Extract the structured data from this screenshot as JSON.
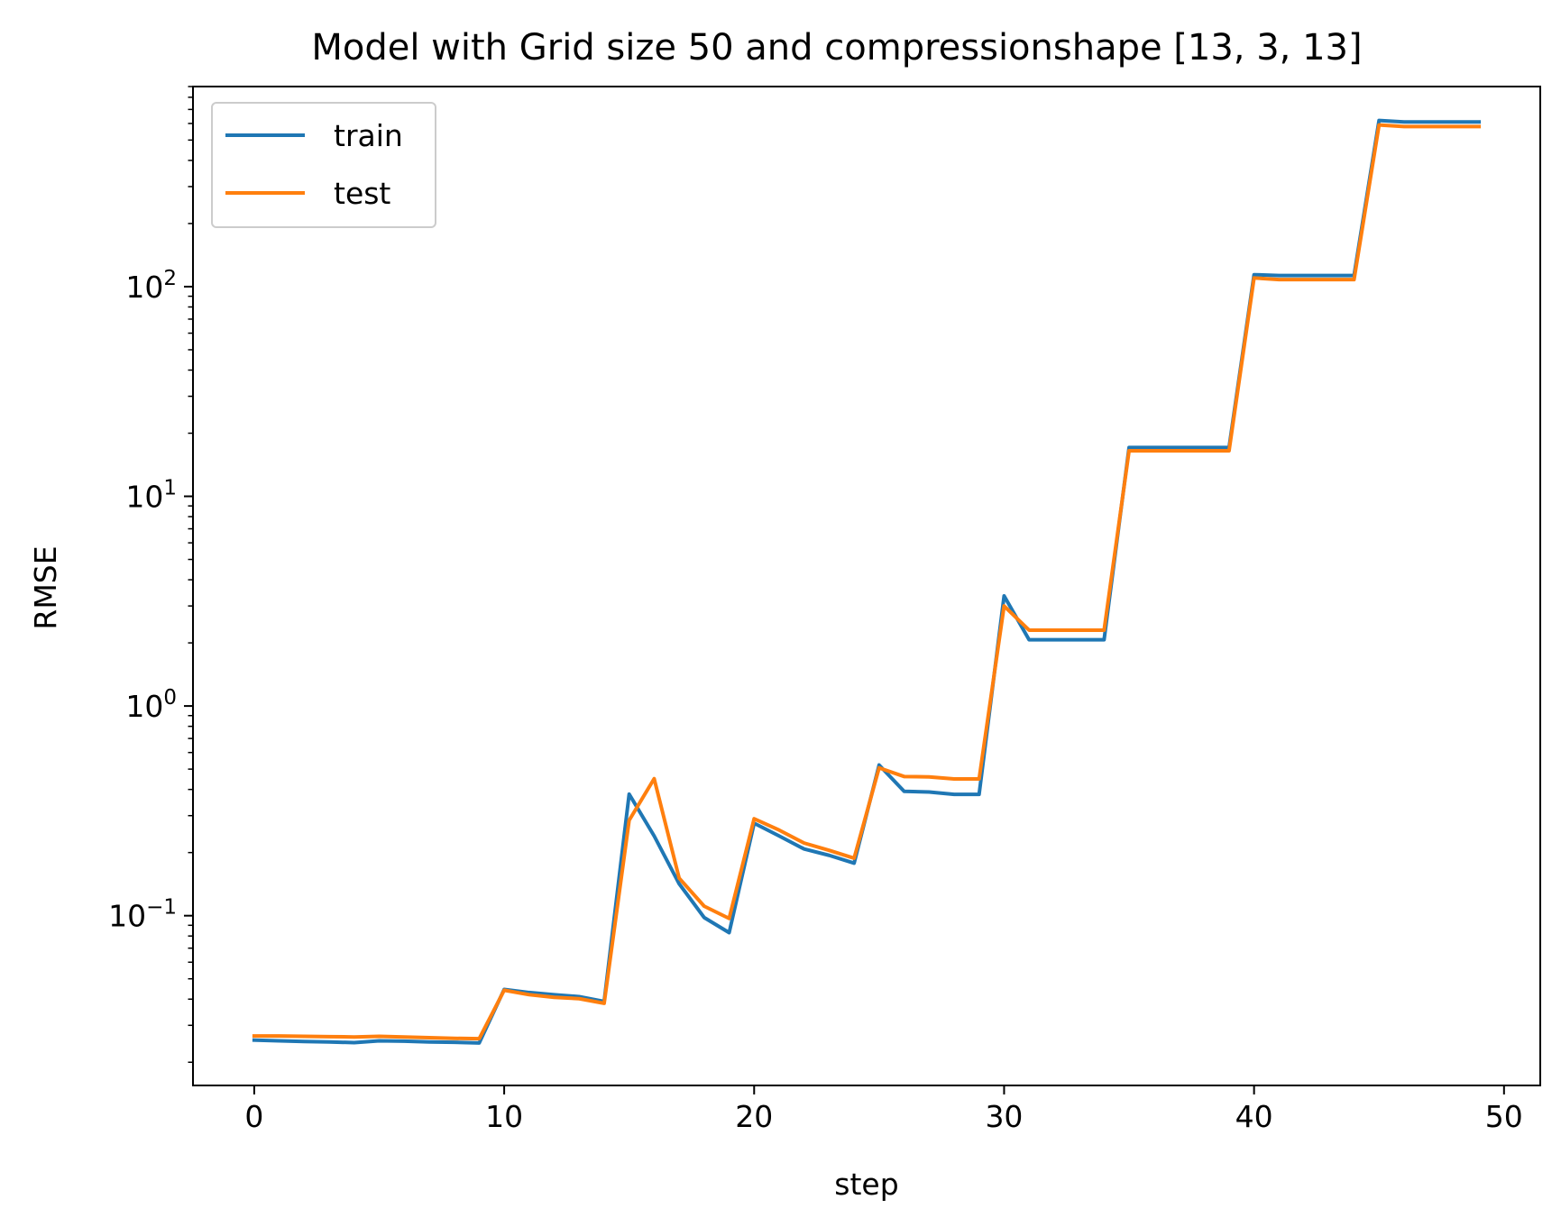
{
  "chart_data": {
    "type": "line",
    "title": "Model with Grid size 50 and compressionshape [13, 3, 13]",
    "xlabel": "step",
    "ylabel": "RMSE",
    "xlim": [
      -2.45,
      51.45
    ],
    "ylim": [
      0.0155,
      900
    ],
    "yscale": "log",
    "grid": false,
    "legend_position": "upper-left",
    "xticks": [
      {
        "value": 0,
        "label": "0"
      },
      {
        "value": 10,
        "label": "10"
      },
      {
        "value": 20,
        "label": "20"
      },
      {
        "value": 30,
        "label": "30"
      },
      {
        "value": 40,
        "label": "40"
      },
      {
        "value": 50,
        "label": "50"
      }
    ],
    "yticks": [
      {
        "value": 0.1,
        "base": "10",
        "exp": "−1"
      },
      {
        "value": 1,
        "base": "10",
        "exp": "0"
      },
      {
        "value": 10,
        "base": "10",
        "exp": "1"
      },
      {
        "value": 100,
        "base": "10",
        "exp": "2"
      }
    ],
    "x": [
      0,
      1,
      2,
      3,
      4,
      5,
      6,
      7,
      8,
      9,
      10,
      11,
      12,
      13,
      14,
      15,
      16,
      17,
      18,
      19,
      20,
      21,
      22,
      23,
      24,
      25,
      26,
      27,
      28,
      29,
      30,
      31,
      32,
      33,
      34,
      35,
      36,
      37,
      38,
      39,
      40,
      41,
      42,
      43,
      44,
      45,
      46,
      47,
      48,
      49
    ],
    "series": [
      {
        "name": "train",
        "color": "#1f77b4",
        "values": [
          0.0255,
          0.0253,
          0.0251,
          0.025,
          0.0248,
          0.0253,
          0.0252,
          0.025,
          0.0249,
          0.0247,
          0.0445,
          0.043,
          0.042,
          0.0411,
          0.039,
          0.38,
          0.24,
          0.142,
          0.098,
          0.083,
          0.276,
          0.24,
          0.208,
          0.194,
          0.178,
          0.523,
          0.392,
          0.389,
          0.379,
          0.379,
          3.35,
          2.07,
          2.07,
          2.07,
          2.07,
          17.1,
          17.1,
          17.1,
          17.1,
          17.1,
          114,
          113,
          113,
          113,
          113,
          620,
          610,
          610,
          610,
          610
        ]
      },
      {
        "name": "test",
        "color": "#ff7f0e",
        "values": [
          0.0267,
          0.0267,
          0.0266,
          0.0265,
          0.0264,
          0.0266,
          0.0264,
          0.0262,
          0.026,
          0.0259,
          0.0441,
          0.042,
          0.0408,
          0.0402,
          0.0382,
          0.285,
          0.45,
          0.151,
          0.111,
          0.097,
          0.29,
          0.256,
          0.222,
          0.205,
          0.188,
          0.507,
          0.461,
          0.459,
          0.449,
          0.449,
          3.0,
          2.3,
          2.3,
          2.3,
          2.3,
          16.5,
          16.5,
          16.5,
          16.5,
          16.5,
          110,
          108,
          108,
          108,
          108,
          590,
          580,
          580,
          580,
          580
        ]
      }
    ]
  }
}
